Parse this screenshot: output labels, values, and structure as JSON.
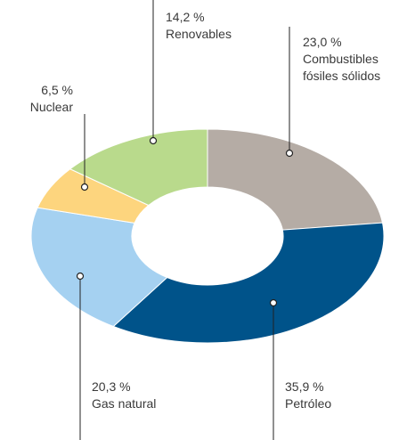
{
  "chart_data": {
    "type": "pie",
    "categories": [
      "Combustibles fósiles sólidos",
      "Petróleo",
      "Gas natural",
      "Nuclear",
      "Renovables"
    ],
    "values": [
      23.0,
      35.9,
      20.3,
      6.5,
      14.2
    ],
    "value_labels": [
      "23,0 %",
      "35,9 %",
      "20,3 %",
      "6,5 %",
      "14,2 %"
    ],
    "colors": [
      "#b5aca5",
      "#00538a",
      "#a5d1f1",
      "#fdd57e",
      "#b9da8c"
    ]
  }
}
